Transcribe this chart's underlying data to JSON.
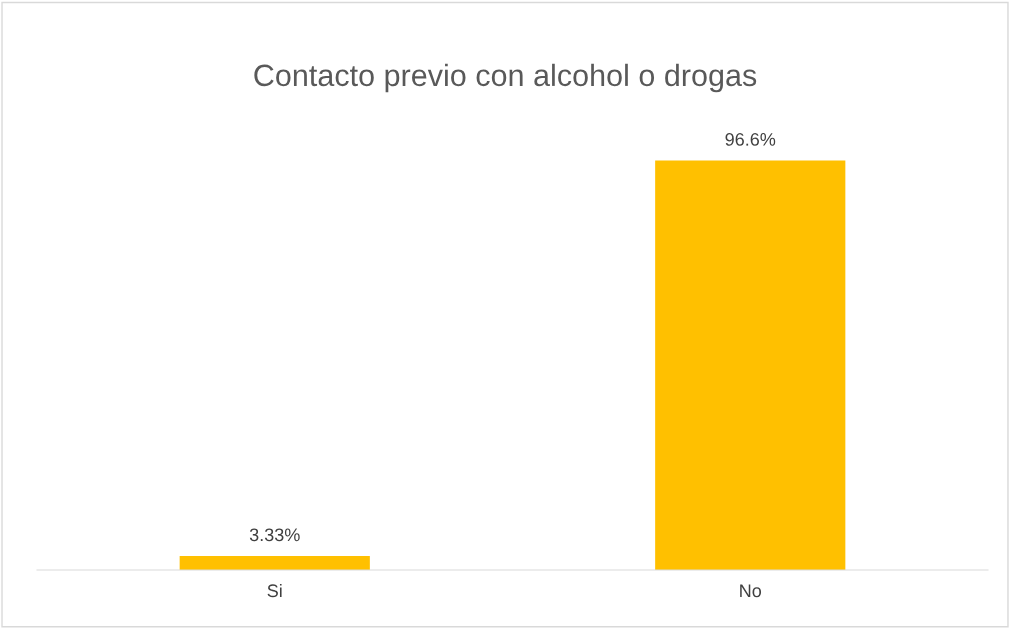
{
  "chart_data": {
    "type": "bar",
    "title": "Contacto previo con alcohol o drogas",
    "categories": [
      "Si",
      "No"
    ],
    "values": [
      3.33,
      96.6
    ],
    "value_labels": [
      "3.33%",
      "96.6%"
    ],
    "color": "#ffc000",
    "grid": false,
    "legend": false
  }
}
